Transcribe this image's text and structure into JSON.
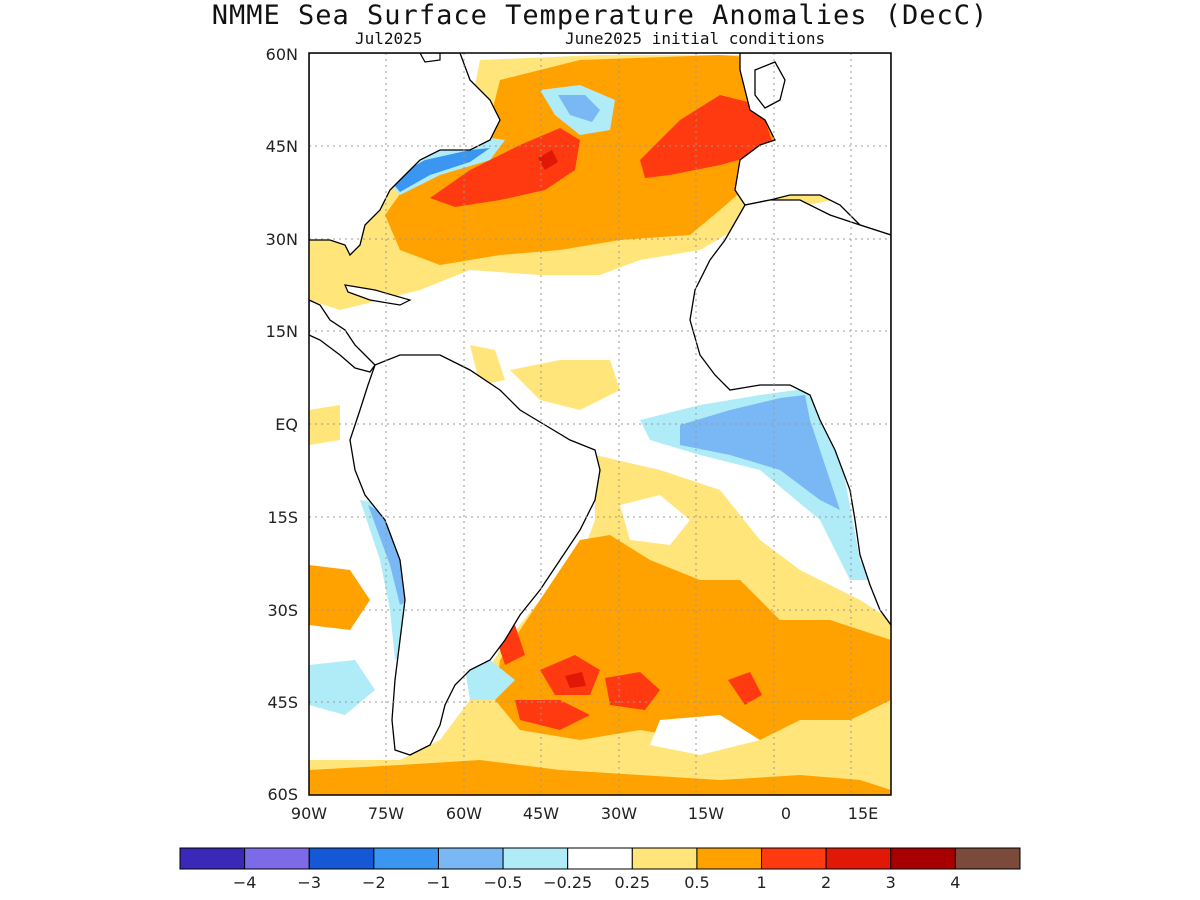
{
  "title": "NMME Sea Surface Temperature Anomalies (DecC)",
  "lead_month": "Jul2025",
  "initial_conditions": "June2025 initial conditions",
  "colors": {
    "land_outline": "#000000",
    "grid": "#999999",
    "neutral": "#ffffff"
  },
  "lat_labels": [
    "60N",
    "45N",
    "30N",
    "15N",
    "EQ",
    "15S",
    "30S",
    "45S",
    "60S"
  ],
  "lon_labels": [
    "90W",
    "75W",
    "60W",
    "45W",
    "30W",
    "15W",
    "0",
    "15E"
  ],
  "colorbar": {
    "bins": [
      {
        "color": "#3a28b8"
      },
      {
        "color": "#7d6ae8"
      },
      {
        "color": "#1558d6"
      },
      {
        "color": "#3a96f0"
      },
      {
        "color": "#7ab8f5"
      },
      {
        "color": "#b0ecf8"
      },
      {
        "color": "#ffffff"
      },
      {
        "color": "#ffe57a"
      },
      {
        "color": "#ffa200"
      },
      {
        "color": "#ff3a10"
      },
      {
        "color": "#e01805"
      },
      {
        "color": "#a80000"
      },
      {
        "color": "#7a4a3a"
      }
    ],
    "labels": [
      "-4",
      "-3",
      "-2",
      "-1",
      "-0.5",
      "-0.25",
      "0.25",
      "0.5",
      "1",
      "2",
      "3",
      "4"
    ]
  }
}
